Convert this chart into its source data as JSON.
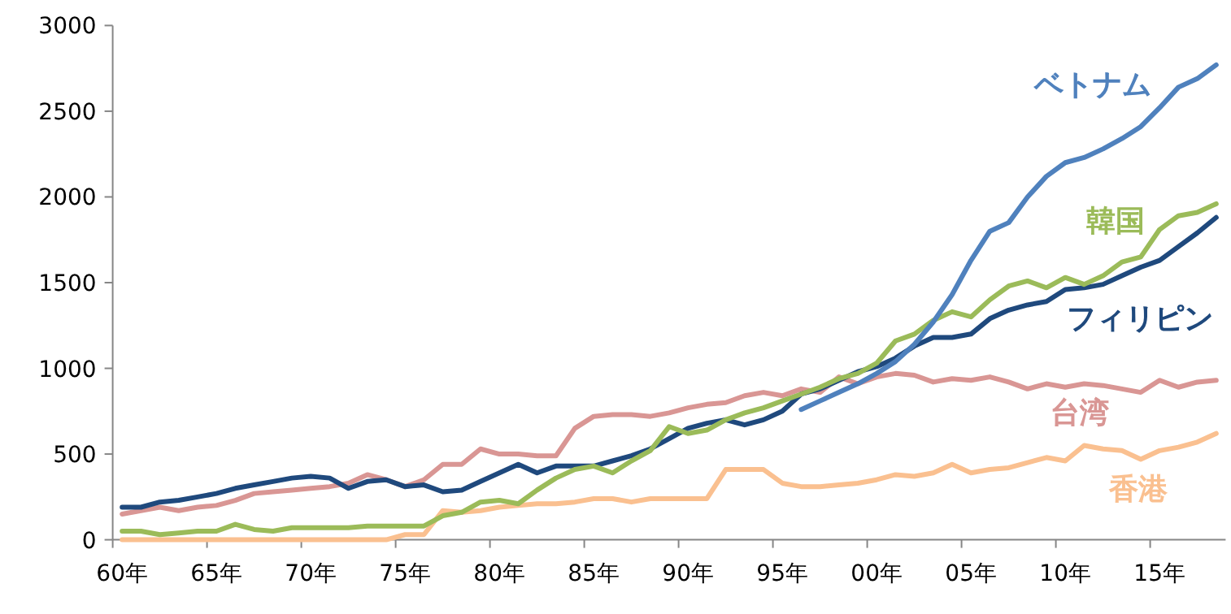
{
  "chart_data": {
    "type": "line",
    "categories": [
      "60年",
      null,
      null,
      null,
      null,
      "65年",
      null,
      null,
      null,
      null,
      "70年",
      null,
      null,
      null,
      null,
      "75年",
      null,
      null,
      null,
      null,
      "80年",
      null,
      null,
      null,
      null,
      "85年",
      null,
      null,
      null,
      null,
      "90年",
      null,
      null,
      null,
      null,
      "95年",
      null,
      null,
      null,
      null,
      "00年",
      null,
      null,
      null,
      null,
      "05年",
      null,
      null,
      null,
      null,
      "10年",
      null,
      null,
      null,
      null,
      "15年",
      null,
      null,
      null
    ],
    "series": [
      {
        "name": "ベトナム",
        "color": "#4f81bd",
        "values": [
          null,
          null,
          null,
          null,
          null,
          null,
          null,
          null,
          null,
          null,
          null,
          null,
          null,
          null,
          null,
          null,
          null,
          null,
          null,
          null,
          null,
          null,
          null,
          null,
          null,
          null,
          null,
          null,
          null,
          null,
          null,
          null,
          null,
          null,
          null,
          null,
          760,
          810,
          860,
          910,
          970,
          1040,
          1140,
          1270,
          1430,
          1630,
          1800,
          1850,
          2000,
          2120,
          2200,
          2230,
          2280,
          2340,
          2410,
          2520,
          2640,
          2690,
          2770
        ]
      },
      {
        "name": "韓国",
        "color": "#9bbb59",
        "values": [
          50,
          50,
          30,
          40,
          50,
          50,
          90,
          60,
          50,
          70,
          70,
          70,
          70,
          80,
          80,
          80,
          80,
          140,
          160,
          220,
          230,
          210,
          290,
          360,
          410,
          430,
          390,
          460,
          520,
          660,
          620,
          640,
          700,
          740,
          770,
          810,
          850,
          890,
          940,
          970,
          1030,
          1160,
          1200,
          1280,
          1330,
          1300,
          1400,
          1480,
          1510,
          1470,
          1530,
          1490,
          1540,
          1620,
          1650,
          1810,
          1890,
          1910,
          1960
        ]
      },
      {
        "name": "フィリピン",
        "color": "#1f497d",
        "values": [
          190,
          190,
          220,
          230,
          250,
          270,
          300,
          320,
          340,
          360,
          370,
          360,
          300,
          340,
          350,
          310,
          320,
          280,
          290,
          340,
          390,
          440,
          390,
          430,
          430,
          430,
          460,
          490,
          530,
          590,
          650,
          680,
          700,
          670,
          700,
          750,
          850,
          880,
          930,
          980,
          1010,
          1060,
          1130,
          1180,
          1180,
          1200,
          1290,
          1340,
          1370,
          1390,
          1460,
          1470,
          1490,
          1540,
          1590,
          1630,
          1710,
          1790,
          1880
        ]
      },
      {
        "name": "台湾",
        "color": "#d99694",
        "values": [
          150,
          170,
          190,
          170,
          190,
          200,
          230,
          270,
          280,
          290,
          300,
          310,
          330,
          380,
          350,
          310,
          350,
          440,
          440,
          530,
          500,
          500,
          490,
          490,
          650,
          720,
          730,
          730,
          720,
          740,
          770,
          790,
          800,
          840,
          860,
          840,
          880,
          860,
          950,
          910,
          950,
          970,
          960,
          920,
          940,
          930,
          950,
          920,
          880,
          910,
          890,
          910,
          900,
          880,
          860,
          930,
          890,
          920,
          930
        ]
      },
      {
        "name": "香港",
        "color": "#fac090",
        "values": [
          0,
          0,
          0,
          0,
          0,
          0,
          0,
          0,
          0,
          0,
          0,
          0,
          0,
          0,
          0,
          30,
          30,
          170,
          160,
          170,
          190,
          200,
          210,
          210,
          220,
          240,
          240,
          220,
          240,
          240,
          240,
          240,
          410,
          410,
          410,
          330,
          310,
          310,
          320,
          330,
          350,
          380,
          370,
          390,
          440,
          390,
          410,
          420,
          450,
          480,
          460,
          550,
          530,
          520,
          470,
          520,
          540,
          570,
          620
        ]
      }
    ],
    "ylim": [
      0,
      3000
    ],
    "yticks": [
      0,
      500,
      1000,
      1500,
      2000,
      2500,
      3000
    ]
  }
}
